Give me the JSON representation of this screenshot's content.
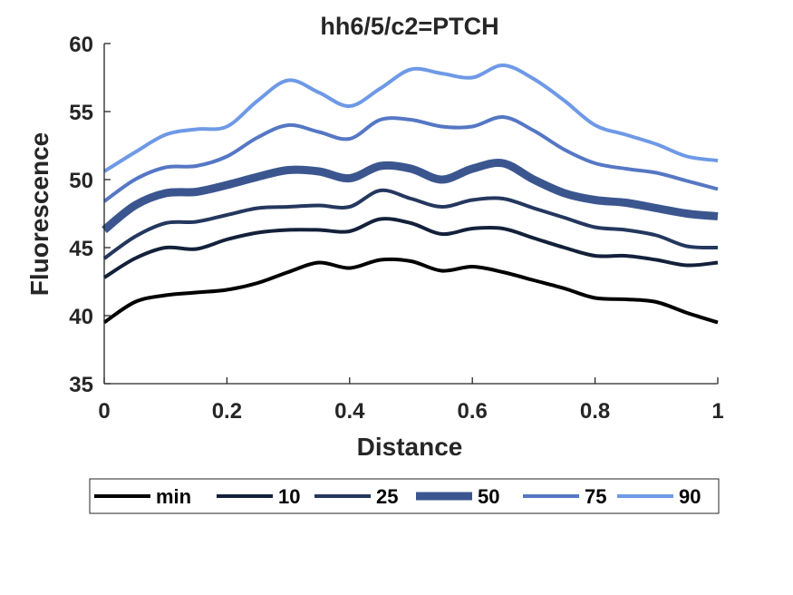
{
  "chart_data": {
    "type": "line",
    "title": "hh6/5/c2=PTCH",
    "xlabel": "Distance",
    "ylabel": "Fluorescence",
    "xlim": [
      0,
      1
    ],
    "ylim": [
      35,
      60
    ],
    "xticks": [
      0,
      0.2,
      0.4,
      0.6,
      0.8,
      1
    ],
    "xtick_labels": [
      "0",
      "0.2",
      "0.4",
      "0.6",
      "0.8",
      "1"
    ],
    "yticks": [
      35,
      40,
      45,
      50,
      55,
      60
    ],
    "ytick_labels": [
      "35",
      "40",
      "45",
      "50",
      "55",
      "60"
    ],
    "grid": false,
    "legend_position": "bottom",
    "x": [
      0,
      0.05,
      0.1,
      0.15,
      0.2,
      0.25,
      0.3,
      0.35,
      0.4,
      0.45,
      0.5,
      0.55,
      0.6,
      0.65,
      0.7,
      0.75,
      0.8,
      0.85,
      0.9,
      0.95,
      1
    ],
    "series": [
      {
        "name": "min",
        "color": "#000000",
        "width": 4,
        "values": [
          39.5,
          41.0,
          41.5,
          41.7,
          41.9,
          42.4,
          43.2,
          43.9,
          43.5,
          44.1,
          44.0,
          43.3,
          43.6,
          43.2,
          42.6,
          42.0,
          41.3,
          41.2,
          41.0,
          40.2,
          39.5
        ]
      },
      {
        "name": "10",
        "color": "#13203a",
        "width": 4,
        "values": [
          42.8,
          44.2,
          45.0,
          44.9,
          45.6,
          46.1,
          46.3,
          46.3,
          46.2,
          47.1,
          46.8,
          46.0,
          46.4,
          46.4,
          45.7,
          45.0,
          44.4,
          44.4,
          44.1,
          43.7,
          43.9
        ]
      },
      {
        "name": "25",
        "color": "#24375e",
        "width": 4,
        "values": [
          44.2,
          45.8,
          46.8,
          46.9,
          47.4,
          47.9,
          48.0,
          48.1,
          48.0,
          49.2,
          48.6,
          48.0,
          48.5,
          48.6,
          47.9,
          47.2,
          46.5,
          46.3,
          45.9,
          45.1,
          45.0
        ]
      },
      {
        "name": "50",
        "color": "#3b568f",
        "width": 9,
        "values": [
          46.3,
          48.1,
          49.0,
          49.1,
          49.6,
          50.2,
          50.7,
          50.6,
          50.1,
          51.0,
          50.8,
          50.0,
          50.8,
          51.2,
          50.0,
          49.0,
          48.5,
          48.3,
          47.9,
          47.5,
          47.3
        ]
      },
      {
        "name": "75",
        "color": "#5577c4",
        "width": 4,
        "values": [
          48.4,
          50.0,
          50.9,
          51.0,
          51.7,
          53.1,
          54.0,
          53.5,
          53.0,
          54.4,
          54.4,
          53.9,
          53.9,
          54.6,
          53.6,
          52.2,
          51.2,
          50.8,
          50.5,
          49.9,
          49.3
        ]
      },
      {
        "name": "90",
        "color": "#6e99e6",
        "width": 4,
        "values": [
          50.6,
          52.0,
          53.3,
          53.7,
          53.9,
          55.8,
          57.3,
          56.4,
          55.4,
          56.7,
          58.1,
          57.8,
          57.5,
          58.4,
          57.4,
          55.8,
          54.0,
          53.3,
          52.6,
          51.7,
          51.4
        ]
      }
    ]
  }
}
